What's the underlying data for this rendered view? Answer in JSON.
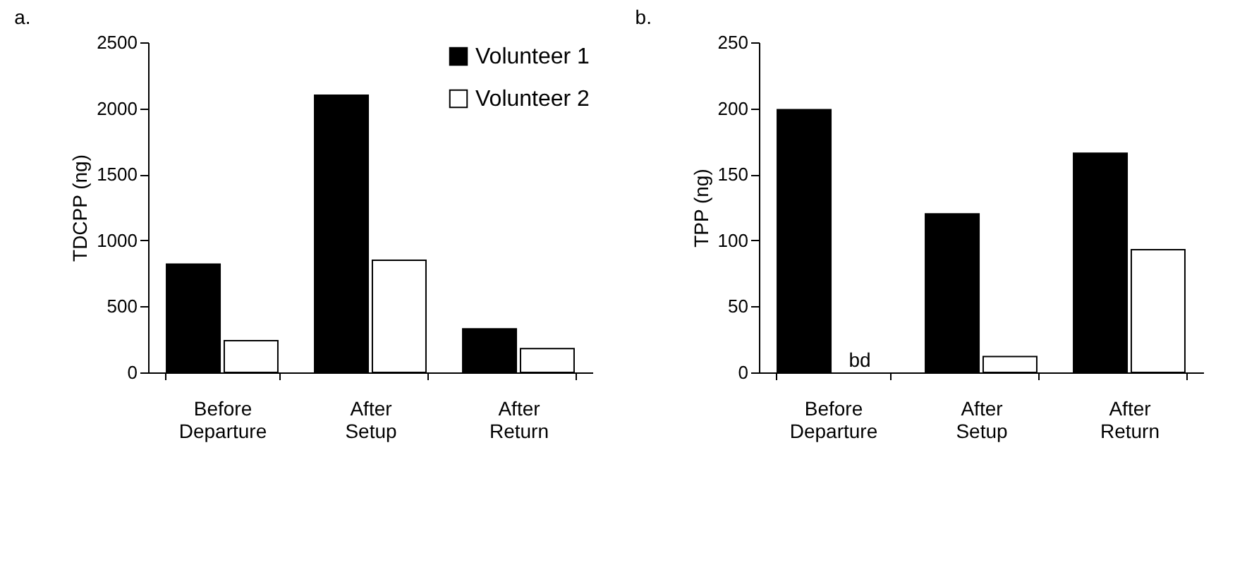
{
  "chart_data": [
    {
      "type": "bar",
      "title": "a.",
      "ylabel": "TDCPP (ng)",
      "categories": [
        "Before Departure",
        "After Setup",
        "After Return"
      ],
      "series": [
        {
          "name": "Volunteer 1",
          "color": "#000000",
          "values": [
            820,
            2100,
            330
          ]
        },
        {
          "name": "Volunteer 2",
          "color": "#ffffff",
          "values": [
            240,
            850,
            180
          ]
        }
      ],
      "ylim": [
        0,
        2500
      ],
      "yticks": [
        0,
        500,
        1000,
        1500,
        2000,
        2500
      ],
      "legend": "top right"
    },
    {
      "type": "bar",
      "title": "b.",
      "ylabel": "TPP (ng)",
      "categories": [
        "Before Departure",
        "After Setup",
        "After Return"
      ],
      "series": [
        {
          "color": "#000000",
          "values": [
            199,
            120,
            166
          ]
        },
        {
          "color": "#ffffff",
          "values": [
            null,
            12,
            93
          ]
        }
      ],
      "ylim": [
        0,
        250
      ],
      "yticks": [
        0,
        50,
        100,
        150,
        200,
        250
      ],
      "annotations": [
        {
          "text": "bd",
          "x": "Before Departure",
          "y": 0
        }
      ]
    }
  ]
}
